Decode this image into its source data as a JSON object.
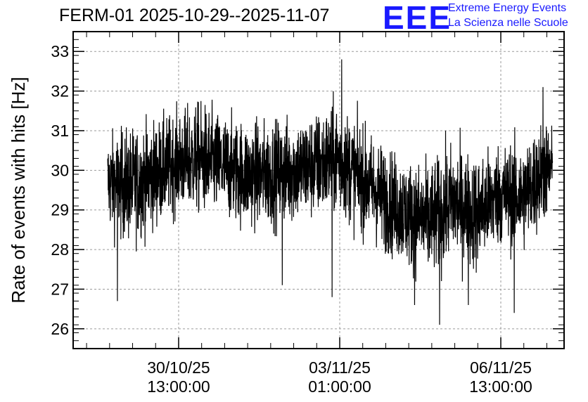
{
  "header": {
    "title": "FERM-01 2025-10-29--2025-11-07",
    "logo_text": "EEE",
    "logo_line1": "Extreme Energy Events",
    "logo_line2": "La Scienza nelle Scuole",
    "logo_color": "#1a1aff"
  },
  "chart_data": {
    "type": "line",
    "title": "FERM-01 2025-10-29--2025-11-07",
    "xlabel": "",
    "ylabel": "Rate of events with hits [Hz]",
    "ylim": [
      25.5,
      33.5
    ],
    "yticks": [
      26,
      27,
      28,
      29,
      30,
      31,
      32,
      33
    ],
    "xlim": [
      "2025-10-28T06:00:00",
      "2025-11-07T22:00:00"
    ],
    "xticks": [
      {
        "t": "2025-10-30T13:00:00",
        "date": "30/10/25",
        "time": "13:00:00"
      },
      {
        "t": "2025-11-03T01:00:00",
        "date": "03/11/25",
        "time": "01:00:00"
      },
      {
        "t": "2025-11-06T13:00:00",
        "date": "06/11/25",
        "time": "13:00:00"
      }
    ],
    "grid": true,
    "line_color": "#000000",
    "series": [
      {
        "envelope": [
          {
            "t": "2025-10-29T00:00:00",
            "mean": 29.7,
            "lo": 28.2,
            "hi": 31.2
          },
          {
            "t": "2025-10-29T12:00:00",
            "mean": 29.6,
            "lo": 27.7,
            "hi": 31.3
          },
          {
            "t": "2025-10-30T00:00:00",
            "mean": 29.9,
            "lo": 28.3,
            "hi": 31.6
          },
          {
            "t": "2025-10-30T12:00:00",
            "mean": 30.2,
            "lo": 28.7,
            "hi": 31.8
          },
          {
            "t": "2025-10-31T00:00:00",
            "mean": 30.3,
            "lo": 28.8,
            "hi": 32.3
          },
          {
            "t": "2025-10-31T12:00:00",
            "mean": 30.1,
            "lo": 28.6,
            "hi": 31.8
          },
          {
            "t": "2025-11-01T00:00:00",
            "mean": 29.9,
            "lo": 28.4,
            "hi": 31.7
          },
          {
            "t": "2025-11-01T12:00:00",
            "mean": 29.9,
            "lo": 28.3,
            "hi": 31.6
          },
          {
            "t": "2025-11-02T00:00:00",
            "mean": 30.0,
            "lo": 28.5,
            "hi": 31.8
          },
          {
            "t": "2025-11-02T12:00:00",
            "mean": 30.1,
            "lo": 28.6,
            "hi": 31.9
          },
          {
            "t": "2025-11-03T00:00:00",
            "mean": 30.3,
            "lo": 28.9,
            "hi": 32.4
          },
          {
            "t": "2025-11-03T12:00:00",
            "mean": 29.8,
            "lo": 28.3,
            "hi": 31.6
          },
          {
            "t": "2025-11-04T00:00:00",
            "mean": 29.3,
            "lo": 27.5,
            "hi": 30.8
          },
          {
            "t": "2025-11-04T12:00:00",
            "mean": 28.9,
            "lo": 27.2,
            "hi": 30.5
          },
          {
            "t": "2025-11-05T00:00:00",
            "mean": 28.7,
            "lo": 26.8,
            "hi": 30.4
          },
          {
            "t": "2025-11-05T12:00:00",
            "mean": 29.2,
            "lo": 27.3,
            "hi": 30.9
          },
          {
            "t": "2025-11-06T00:00:00",
            "mean": 28.9,
            "lo": 27.1,
            "hi": 30.7
          },
          {
            "t": "2025-11-06T12:00:00",
            "mean": 29.4,
            "lo": 27.8,
            "hi": 31.0
          },
          {
            "t": "2025-11-07T00:00:00",
            "mean": 29.3,
            "lo": 27.5,
            "hi": 30.9
          },
          {
            "t": "2025-11-07T12:00:00",
            "mean": 30.0,
            "lo": 28.6,
            "hi": 31.8
          },
          {
            "t": "2025-11-07T16:00:00",
            "mean": 30.0,
            "lo": 28.8,
            "hi": 31.4
          }
        ],
        "outliers": [
          {
            "t": "2025-10-29T05:00:00",
            "y": 26.7
          },
          {
            "t": "2025-11-01T19:00:00",
            "y": 27.1
          },
          {
            "t": "2025-11-02T21:00:00",
            "y": 26.8
          },
          {
            "t": "2025-11-03T02:00:00",
            "y": 32.8
          },
          {
            "t": "2025-11-04T16:00:00",
            "y": 26.6
          },
          {
            "t": "2025-11-05T05:00:00",
            "y": 26.1
          },
          {
            "t": "2025-11-05T20:00:00",
            "y": 26.6
          },
          {
            "t": "2025-11-06T20:00:00",
            "y": 26.4
          },
          {
            "t": "2025-11-07T11:00:00",
            "y": 32.1
          }
        ]
      }
    ]
  }
}
